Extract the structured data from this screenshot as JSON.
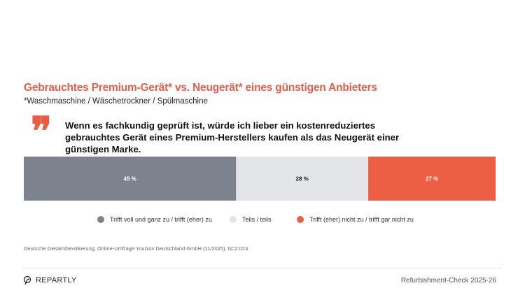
{
  "header": {
    "title": "Gebrauchtes Premium-Gerät* vs. Neugerät* eines günstigen Anbieters",
    "subtitle": "*Waschmaschine / Wäschetrockner / Spülmaschine",
    "quote_icon": "quote-mark-icon",
    "quote": "Wenn es fachkundig geprüft ist, würde ich lieber ein kostenreduziertes gebrauchtes Gerät eines Premium-Herstellers kaufen als das Neugerät einer günstigen Marke."
  },
  "chart_data": {
    "type": "bar",
    "orientation": "horizontal-stacked-100",
    "categories": [
      ""
    ],
    "series": [
      {
        "name": "Trifft voll und ganz zu / trifft (eher) zu",
        "values": [
          45
        ],
        "label": "45 %",
        "color": "#7d828f"
      },
      {
        "name": "Teils / teils",
        "values": [
          28
        ],
        "label": "28 %",
        "color": "#e3e4e8"
      },
      {
        "name": "Trifft (eher) nicht zu / trifft gar nicht zu",
        "values": [
          27
        ],
        "label": "27 %",
        "color": "#ec5f45"
      }
    ],
    "legend_position": "bottom",
    "grid": false
  },
  "source": "Deutsche Gesamtbevölkerung, Online-Umfrage YouGov Deutschland GmbH (11/2025), N=2.023",
  "footer": {
    "logo_text": "REPARTLY",
    "right_text": "Refurbishment-Check 2025-26"
  }
}
